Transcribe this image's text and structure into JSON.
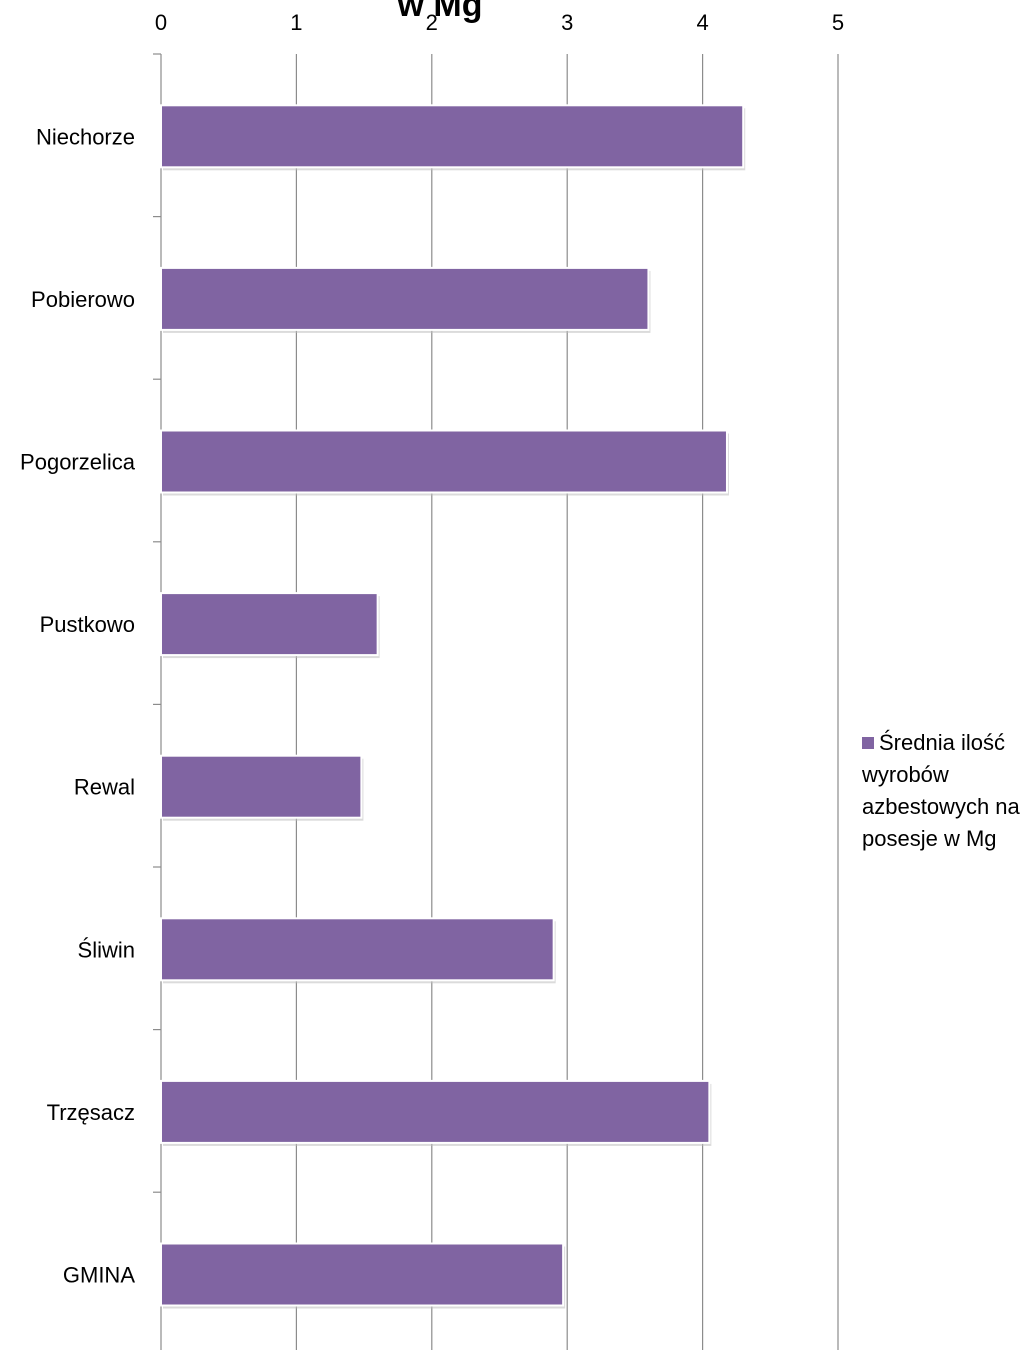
{
  "chart_data": {
    "type": "bar",
    "orientation": "horizontal",
    "title": "w Mg",
    "categories": [
      "Niechorze",
      "Pobierowo",
      "Pogorzelica",
      "Pustkowo",
      "Rewal",
      "Śliwin",
      "Trzęsacz",
      "GMINA"
    ],
    "series": [
      {
        "name": "Średnia ilość wyrobów azbestowych na posesje w Mg",
        "color": "#8064A2",
        "values": [
          4.3,
          3.6,
          4.18,
          1.6,
          1.48,
          2.9,
          4.05,
          2.97
        ]
      }
    ],
    "xlim": [
      0,
      5
    ],
    "x_ticks": [
      "0",
      "1",
      "2",
      "3",
      "4",
      "5"
    ],
    "x_axis_position": "top",
    "grid": true,
    "legend_position": "right"
  }
}
